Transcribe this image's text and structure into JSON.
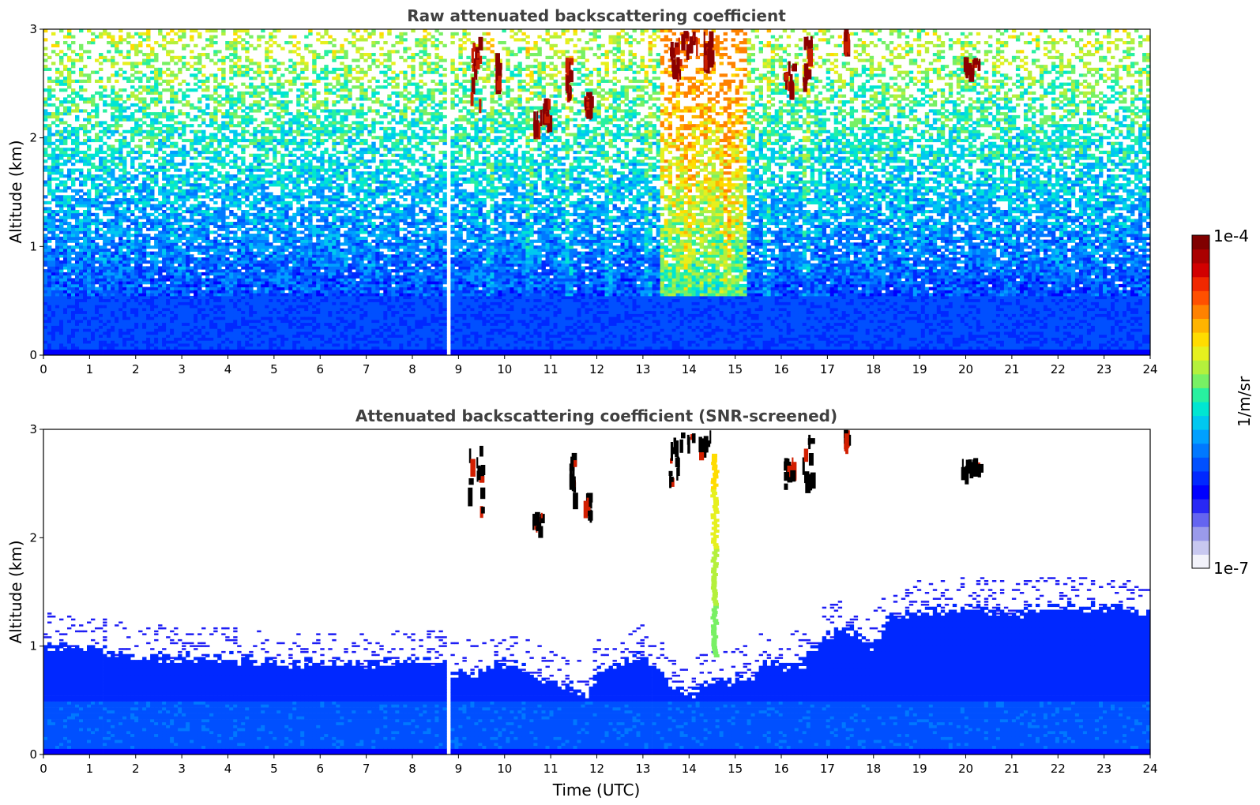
{
  "chart_data": [
    {
      "type": "heatmap",
      "title": "Raw attenuated backscattering coefficient",
      "xlabel": "",
      "ylabel": "Altitude (km)",
      "xlim": [
        0,
        24
      ],
      "ylim": [
        0,
        3
      ],
      "x_ticks": [
        "0",
        "1",
        "2",
        "3",
        "4",
        "5",
        "6",
        "7",
        "8",
        "9",
        "10",
        "11",
        "12",
        "13",
        "14",
        "15",
        "16",
        "17",
        "18",
        "19",
        "20",
        "21",
        "22",
        "23",
        "24"
      ],
      "y_ticks": [
        "0",
        "1",
        "2",
        "3"
      ],
      "data_gap": {
        "start": 8.7,
        "end": 8.87
      },
      "clouds": [
        {
          "t": [
            9.25,
            9.45
          ],
          "alt": [
            2.3,
            2.95
          ]
        },
        {
          "t": [
            9.8,
            9.85
          ],
          "alt": [
            2.5,
            2.8
          ]
        },
        {
          "t": [
            10.6,
            10.7
          ],
          "alt": [
            2.1,
            2.25
          ]
        },
        {
          "t": [
            10.75,
            10.95
          ],
          "alt": [
            2.2,
            2.4
          ]
        },
        {
          "t": [
            11.3,
            11.4
          ],
          "alt": [
            2.45,
            2.75
          ]
        },
        {
          "t": [
            11.7,
            11.85
          ],
          "alt": [
            2.25,
            2.45
          ]
        },
        {
          "t": [
            13.55,
            13.8
          ],
          "alt": [
            2.55,
            2.95
          ]
        },
        {
          "t": [
            13.8,
            14.45
          ],
          "alt": [
            2.85,
            3.0
          ]
        },
        {
          "t": [
            14.3,
            14.45
          ],
          "alt": [
            2.7,
            2.85
          ]
        },
        {
          "t": [
            16.05,
            16.25
          ],
          "alt": [
            2.5,
            2.75
          ]
        },
        {
          "t": [
            16.45,
            16.65
          ],
          "alt": [
            2.55,
            2.95
          ]
        },
        {
          "t": [
            17.35,
            17.4
          ],
          "alt": [
            2.9,
            3.0
          ]
        },
        {
          "t": [
            19.95,
            20.3
          ],
          "alt": [
            2.65,
            2.75
          ]
        }
      ]
    },
    {
      "type": "heatmap",
      "title": "Attenuated backscattering coefficient (SNR-screened)",
      "xlabel": "Time (UTC)",
      "ylabel": "Altitude (km)",
      "xlim": [
        0,
        24
      ],
      "ylim": [
        0,
        3
      ],
      "x_ticks": [
        "0",
        "1",
        "2",
        "3",
        "4",
        "5",
        "6",
        "7",
        "8",
        "9",
        "10",
        "11",
        "12",
        "13",
        "14",
        "15",
        "16",
        "17",
        "18",
        "19",
        "20",
        "21",
        "22",
        "23",
        "24"
      ],
      "y_ticks": [
        "0",
        "1",
        "2",
        "3"
      ],
      "data_gap": {
        "start": 8.7,
        "end": 8.87
      },
      "boundary_layer_top_km": [
        [
          0,
          0.95
        ],
        [
          1,
          0.92
        ],
        [
          2,
          0.85
        ],
        [
          3,
          0.83
        ],
        [
          4,
          0.83
        ],
        [
          5,
          0.8
        ],
        [
          6,
          0.78
        ],
        [
          7,
          0.78
        ],
        [
          8,
          0.8
        ],
        [
          8.7,
          0.8
        ],
        [
          8.87,
          0.7
        ],
        [
          9.5,
          0.72
        ],
        [
          10,
          0.78
        ],
        [
          10.5,
          0.72
        ],
        [
          11,
          0.6
        ],
        [
          11.5,
          0.55
        ],
        [
          11.8,
          0.5
        ],
        [
          12,
          0.7
        ],
        [
          12.5,
          0.78
        ],
        [
          13,
          0.85
        ],
        [
          13.3,
          0.75
        ],
        [
          13.6,
          0.6
        ],
        [
          14,
          0.5
        ],
        [
          14.4,
          0.6
        ],
        [
          14.8,
          0.62
        ],
        [
          15.2,
          0.65
        ],
        [
          15.4,
          0.6
        ],
        [
          15.6,
          0.8
        ],
        [
          16,
          0.75
        ],
        [
          16.5,
          0.8
        ],
        [
          17,
          1.05
        ],
        [
          17.5,
          1.1
        ],
        [
          18,
          0.95
        ],
        [
          18.3,
          1.2
        ],
        [
          19,
          1.25
        ],
        [
          20,
          1.3
        ],
        [
          21,
          1.25
        ],
        [
          22,
          1.3
        ],
        [
          23,
          1.3
        ],
        [
          24,
          1.25
        ]
      ],
      "clouds": [
        {
          "t": [
            9.2,
            9.5
          ],
          "alt": [
            2.2,
            2.85
          ]
        },
        {
          "t": [
            10.6,
            10.8
          ],
          "alt": [
            2.1,
            2.25
          ]
        },
        {
          "t": [
            11.4,
            11.5
          ],
          "alt": [
            2.4,
            2.8
          ]
        },
        {
          "t": [
            11.7,
            11.85
          ],
          "alt": [
            2.25,
            2.45
          ]
        },
        {
          "t": [
            13.55,
            13.8
          ],
          "alt": [
            2.55,
            2.95
          ]
        },
        {
          "t": [
            13.8,
            14.45
          ],
          "alt": [
            2.85,
            3.0
          ]
        },
        {
          "t": [
            16.05,
            16.25
          ],
          "alt": [
            2.5,
            2.75
          ]
        },
        {
          "t": [
            16.45,
            16.65
          ],
          "alt": [
            2.5,
            2.95
          ]
        },
        {
          "t": [
            17.35,
            17.4
          ],
          "alt": [
            2.9,
            3.0
          ]
        },
        {
          "t": [
            19.9,
            20.3
          ],
          "alt": [
            2.65,
            2.75
          ]
        }
      ],
      "plume": {
        "t": 14.55,
        "alt": [
          0.9,
          2.75
        ]
      }
    }
  ],
  "colorbar": {
    "label": "1/m/sr",
    "min_label": "1e-7",
    "max_label": "1e-4",
    "scale": "log",
    "colors": [
      "#f2f2fa",
      "#c8c8f0",
      "#9a9aeb",
      "#6464f0",
      "#2828f5",
      "#0000ff",
      "#0028ff",
      "#0050ff",
      "#0078ff",
      "#00a0ff",
      "#00c8f0",
      "#00e6d2",
      "#28f0a0",
      "#78f064",
      "#b4f03c",
      "#e6f01e",
      "#ffdc00",
      "#ffb400",
      "#ff8200",
      "#ff5000",
      "#f02800",
      "#d20000",
      "#aa0000",
      "#800000"
    ]
  }
}
